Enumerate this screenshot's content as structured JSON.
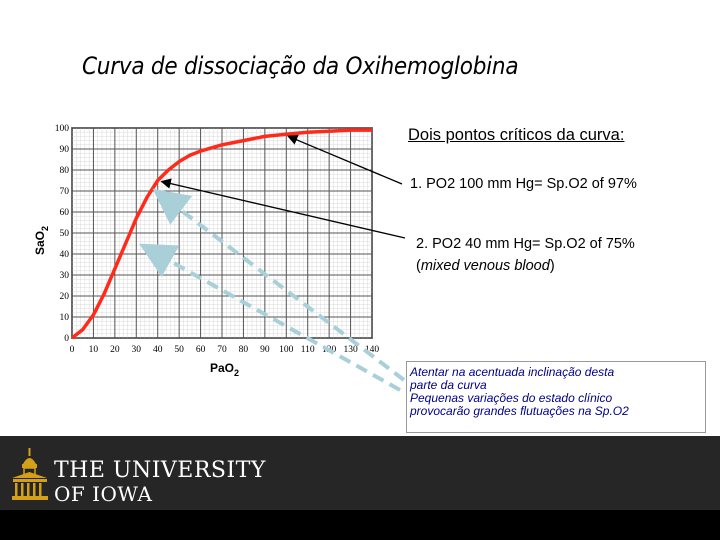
{
  "title": "Curva de dissociação da Oxihemoglobina",
  "notes": {
    "heading": "Dois pontos críticos da curva:",
    "point1": "1. PO2 100 mm Hg= Sp.O2 of 97%",
    "point2": "2. PO2 40 mm Hg= Sp.O2 of 75%",
    "point2_note_open": "(",
    "point2_note": "mixed venous blood",
    "point2_note_close": ")"
  },
  "warning": {
    "line1": "Atentar na acentuada inclinação desta",
    "line2": "parte da curva",
    "line3": "Pequenas variações do estado clínico",
    "line4": "provocarão grandes flutuações na Sp.O2"
  },
  "footer": {
    "line1": "THE UNIVERSITY",
    "line2": "OF IOWA"
  },
  "colors": {
    "curve": "#ff2a1a",
    "arrow_solid": "#000000",
    "arrow_dashed": "#a9cfd8",
    "warning_text": "#00008b",
    "footer_bg": "#262626"
  },
  "chart_data": {
    "type": "line",
    "xlabel_main": "PaO",
    "xlabel_sub": "2",
    "ylabel_main": "SaO",
    "ylabel_sub": "2",
    "xlim": [
      0,
      140
    ],
    "ylim": [
      0,
      100
    ],
    "x_ticks": [
      "0",
      "10",
      "20",
      "30",
      "40",
      "50",
      "60",
      "70",
      "80",
      "90",
      "100",
      "110",
      "120",
      "130",
      "140"
    ],
    "y_ticks": [
      "0",
      "10",
      "20",
      "30",
      "40",
      "50",
      "60",
      "70",
      "80",
      "90",
      "100"
    ],
    "grid": true,
    "series": [
      {
        "x": [
          0,
          5,
          10,
          15,
          20,
          25,
          30,
          35,
          40,
          45,
          50,
          55,
          60,
          70,
          80,
          90,
          100,
          110,
          120,
          130,
          140
        ],
        "y": [
          0,
          4,
          11,
          21,
          33,
          45,
          57,
          67,
          75,
          80,
          84,
          87,
          89,
          92,
          94,
          96,
          97,
          98,
          98.5,
          99,
          99
        ]
      }
    ]
  }
}
